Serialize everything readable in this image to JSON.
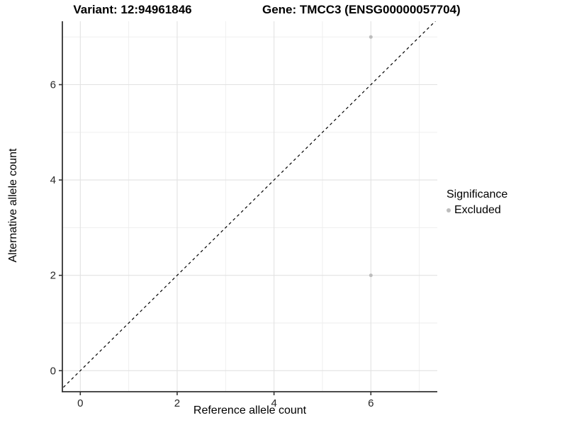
{
  "titles": {
    "variant": "Variant: 12:94961846",
    "gene": "Gene: TMCC3 (ENSG00000057704)"
  },
  "chart_data": {
    "type": "scatter",
    "title": "Variant: 12:94961846 | Gene: TMCC3 (ENSG00000057704)",
    "xlabel": "Reference allele count",
    "ylabel": "Alternative allele count",
    "x_ticks": [
      0,
      2,
      4,
      6
    ],
    "y_ticks": [
      0,
      2,
      4,
      6
    ],
    "grid_values": [
      0,
      1,
      2,
      3,
      4,
      5,
      6,
      7
    ],
    "xlim": [
      -0.37,
      7.37
    ],
    "ylim": [
      -0.44,
      7.33
    ],
    "grid": "on",
    "reference_line": {
      "style": "dashed",
      "slope": 1,
      "intercept": 0,
      "color": "#000000"
    },
    "series": [
      {
        "name": "Excluded",
        "color": "#bdbdbd",
        "points": [
          {
            "x": 6,
            "y": 7
          },
          {
            "x": 6,
            "y": 2
          }
        ]
      }
    ],
    "legend": {
      "title": "Significance",
      "position": "right",
      "items": [
        {
          "label": "Excluded",
          "color": "#bdbdbd"
        }
      ]
    }
  },
  "colors": {
    "background": "#ffffff",
    "axis_line": "#333333",
    "tick_mark": "#333333",
    "tick_label": "#262626",
    "grid_major": "#e2e2e2",
    "grid_minor": "#ededed",
    "point": "#bdbdbd",
    "identity_line": "#000000",
    "title_text": "#000000"
  }
}
